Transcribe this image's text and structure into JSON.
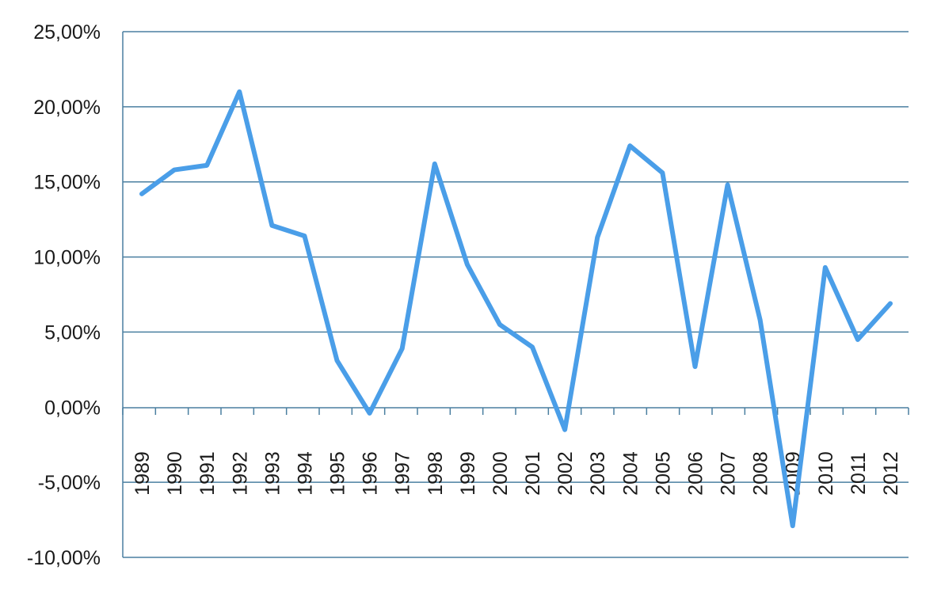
{
  "chart_data": {
    "type": "line",
    "title": "",
    "xlabel": "",
    "ylabel": "",
    "categories": [
      "1989",
      "1990",
      "1991",
      "1992",
      "1993",
      "1994",
      "1995",
      "1996",
      "1997",
      "1998",
      "1999",
      "2000",
      "2001",
      "2002",
      "2003",
      "2004",
      "2005",
      "2006",
      "2007",
      "2008",
      "2009",
      "2010",
      "2011",
      "2012"
    ],
    "y_ticks": [
      "25,00%",
      "20,00%",
      "15,00%",
      "10,00%",
      "5,00%",
      "0,00%",
      "-5,00%",
      "-10,00%"
    ],
    "y_tick_values": [
      25,
      20,
      15,
      10,
      5,
      0,
      -5,
      -10
    ],
    "ylim": [
      -10,
      25
    ],
    "grid": true,
    "legend": "none",
    "series": [
      {
        "color": "#4a9ee8",
        "values": [
          14.2,
          15.8,
          16.1,
          21.0,
          12.1,
          11.4,
          3.1,
          -0.4,
          3.9,
          16.2,
          9.5,
          5.5,
          4.0,
          -1.5,
          11.3,
          17.4,
          15.6,
          2.7,
          14.8,
          5.8,
          -7.9,
          9.3,
          4.5,
          6.9
        ]
      }
    ]
  }
}
